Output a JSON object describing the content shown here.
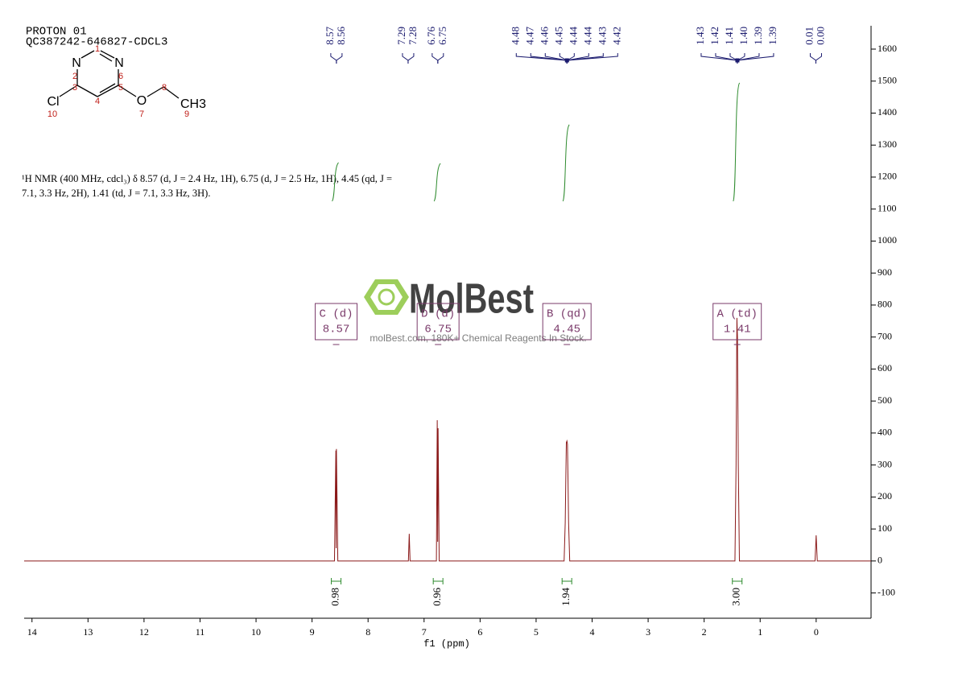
{
  "chart_data": {
    "type": "line",
    "title": [
      "PROTON 01",
      "QC387242-646827-CDCL3"
    ],
    "description": [
      "¹H NMR (400 MHz, cdcl₃) δ 8.57 (d, J = 2.4 Hz, 1H), 6.75 (d, J = 2.5 Hz, 1H), 4.45 (qd, J =",
      "7.1, 3.3 Hz, 2H), 1.41 (td, J = 7.1, 3.3 Hz, 3H)."
    ],
    "structure": {
      "atoms": [
        "N",
        "N",
        "Cl",
        "O",
        "CH3"
      ],
      "numbers": [
        "1",
        "2",
        "3",
        "4",
        "5",
        "6",
        "7",
        "8",
        "9",
        "10"
      ]
    },
    "watermark": [
      "MolBest",
      "molBest.com, 180K+ Chemical Reagents In Stock."
    ],
    "xlabel": "f1 (ppm)",
    "xlim": [
      14.14,
      -0.98
    ],
    "xticks": [
      14,
      13,
      12,
      11,
      10,
      9,
      8,
      7,
      6,
      5,
      4,
      3,
      2,
      1,
      0
    ],
    "ylim": [
      -179,
      1673
    ],
    "yticks": [
      -100,
      0,
      100,
      200,
      300,
      400,
      500,
      600,
      700,
      800,
      900,
      1000,
      1100,
      1200,
      1300,
      1400,
      1500,
      1600
    ],
    "color": "#8b1a1a",
    "x": [
      14.14,
      8.6,
      8.575,
      8.57,
      8.565,
      8.54,
      7.28,
      7.265,
      7.25,
      6.78,
      6.765,
      6.757,
      6.75,
      6.73,
      4.5,
      4.48,
      4.47,
      4.46,
      4.45,
      4.44,
      4.43,
      4.42,
      4.4,
      1.45,
      1.43,
      1.415,
      1.405,
      1.39,
      1.37,
      0.02,
      0,
      -0.02,
      -0.98
    ],
    "values": [
      0,
      0,
      345,
      40,
      350,
      0,
      0,
      85,
      0,
      0,
      440,
      60,
      415,
      0,
      0,
      120,
      250,
      370,
      375,
      365,
      250,
      120,
      0,
      0,
      300,
      760,
      700,
      300,
      0,
      0,
      80,
      0,
      0
    ],
    "peak_labels": [
      [
        8.57,
        8.56
      ],
      [
        7.29,
        7.28
      ],
      [
        6.76,
        6.75
      ],
      [
        4.48,
        4.47,
        4.46,
        4.45,
        4.44,
        4.44,
        4.43,
        4.42
      ],
      [
        1.43,
        1.42,
        1.41,
        {
          "value": 1.4,
          "label": "1.40"
        },
        1.39,
        1.39
      ],
      [
        0.01,
        {
          "value": 0,
          "label": "0.00"
        }
      ]
    ],
    "multiplets": [
      {
        "name": "C (d)",
        "shift": 8.57
      },
      {
        "name": "D (d)",
        "shift": 6.75
      },
      {
        "name": "B (qd)",
        "shift": 4.45
      },
      {
        "name": "A (td)",
        "shift": 1.41
      }
    ],
    "integrals": [
      {
        "x": 8.57,
        "value": 0.98
      },
      {
        "x": 6.75,
        "value": 0.96
      },
      {
        "x": 4.45,
        "value": 1.94
      },
      {
        "x": 1.41,
        "value": 3,
        "label": "3.00"
      }
    ],
    "integral_color": "#2e8b2e",
    "label_color": "#1a1a6e"
  }
}
